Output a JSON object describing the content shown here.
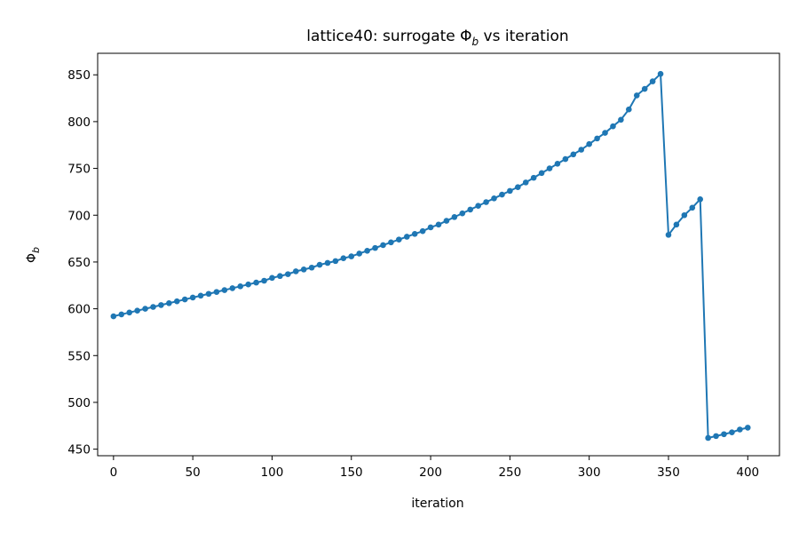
{
  "chart_data": {
    "type": "line",
    "title": "lattice40: surrogate Φ",
    "title_sub": "b",
    "title_suffix": " vs iteration",
    "xlabel": "iteration",
    "ylabel": "Φ",
    "ylabel_sub": "b",
    "xlim": [
      -10,
      420
    ],
    "ylim": [
      443,
      873
    ],
    "xticks": [
      0,
      50,
      100,
      150,
      200,
      250,
      300,
      350,
      400
    ],
    "yticks": [
      450,
      500,
      550,
      600,
      650,
      700,
      750,
      800,
      850
    ],
    "grid": false,
    "markers": true,
    "color": "#1f77b4",
    "series": [
      {
        "x": [
          0,
          5,
          10,
          15,
          20,
          25,
          30,
          35,
          40,
          45,
          50,
          55,
          60,
          65,
          70,
          75,
          80,
          85,
          90,
          95,
          100,
          105,
          110,
          115,
          120,
          125,
          130,
          135,
          140,
          145,
          150,
          155,
          160,
          165,
          170,
          175,
          180,
          185,
          190,
          195,
          200,
          205,
          210,
          215,
          220,
          225,
          230,
          235,
          240,
          245,
          250,
          255,
          260,
          265,
          270,
          275,
          280,
          285,
          290,
          295,
          300,
          305,
          310,
          315,
          320,
          325,
          330,
          335,
          340,
          345,
          350,
          355,
          360,
          365,
          370,
          375,
          380,
          385,
          390,
          395,
          400
        ],
        "y": [
          592,
          594,
          596,
          598,
          600,
          602,
          604,
          606,
          608,
          610,
          612,
          614,
          616,
          618,
          620,
          622,
          624,
          626,
          628,
          630,
          633,
          635,
          637,
          640,
          642,
          644,
          647,
          649,
          651,
          654,
          656,
          659,
          662,
          665,
          668,
          671,
          674,
          677,
          680,
          683,
          687,
          690,
          694,
          698,
          702,
          706,
          710,
          714,
          718,
          722,
          726,
          730,
          735,
          740,
          745,
          750,
          755,
          760,
          765,
          770,
          776,
          782,
          788,
          795,
          802,
          813,
          828,
          835,
          843,
          851,
          679,
          690,
          700,
          708,
          717,
          462,
          464,
          466,
          468,
          471,
          473
        ]
      }
    ]
  }
}
